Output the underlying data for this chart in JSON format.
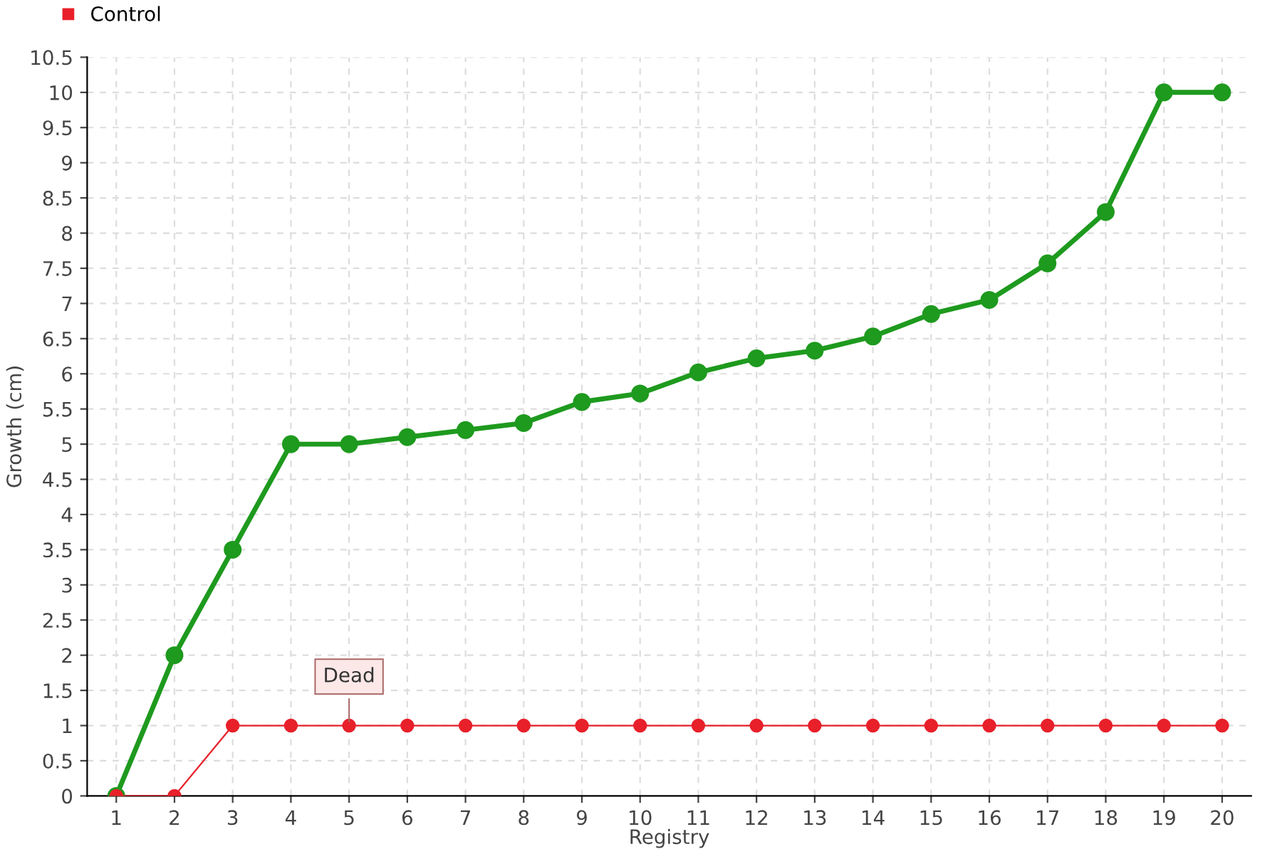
{
  "chart_data": {
    "type": "line",
    "xlabel": "Registry",
    "ylabel": "Growth (cm)",
    "categories": [
      "1",
      "2",
      "3",
      "4",
      "5",
      "6",
      "7",
      "8",
      "9",
      "10",
      "11",
      "12",
      "13",
      "14",
      "15",
      "16",
      "17",
      "18",
      "19",
      "20"
    ],
    "series": [
      {
        "color": "#1e9a1e",
        "values": [
          0,
          2,
          3.5,
          5,
          5,
          5.1,
          5.2,
          5.3,
          5.6,
          5.72,
          6.02,
          6.22,
          6.33,
          6.53,
          6.85,
          7.05,
          7.57,
          8.3,
          10,
          10
        ]
      },
      {
        "name": "Control",
        "color": "#e8202a",
        "values": [
          0,
          0,
          1,
          1,
          1,
          1,
          1,
          1,
          1,
          1,
          1,
          1,
          1,
          1,
          1,
          1,
          1,
          1,
          1,
          1
        ]
      }
    ],
    "annotations": [
      {
        "text": "Dead",
        "x": "5",
        "y": 1
      }
    ],
    "ylim": [
      0,
      10.5
    ],
    "yticks": [
      0,
      0.5,
      1,
      1.5,
      2,
      2.5,
      3,
      3.5,
      4,
      4.5,
      5,
      5.5,
      6,
      6.5,
      7,
      7.5,
      8,
      8.5,
      9,
      9.5,
      10,
      10.5
    ],
    "grid": true,
    "legend": "top left",
    "marker": "circle",
    "line_style": "solid"
  }
}
